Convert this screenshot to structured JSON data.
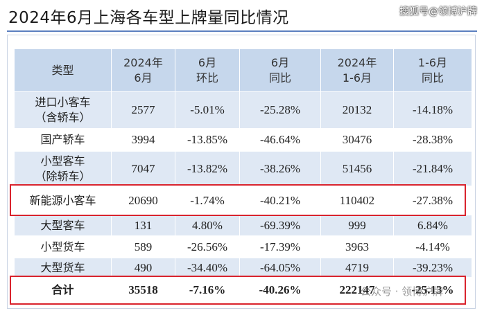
{
  "header": {
    "title": "2024年6月上海各车型上牌量同比情况",
    "watermark": "搜狐号@领博沪牌"
  },
  "table": {
    "columns": [
      [
        "类型"
      ],
      [
        "2024年",
        "6月"
      ],
      [
        "6月",
        "环比"
      ],
      [
        "6月",
        "同比"
      ],
      [
        "2024年",
        "1-6月"
      ],
      [
        "1-6月",
        "同比"
      ]
    ],
    "rows": [
      [
        [
          "进口小客车",
          "（含轿车）"
        ],
        "2577",
        "-5.01%",
        "-25.28%",
        "20132",
        "-14.18%"
      ],
      [
        [
          "国产轿车"
        ],
        "3994",
        "-13.85%",
        "-46.64%",
        "30476",
        "-28.38%"
      ],
      [
        [
          "小型客车",
          "（除轿车）"
        ],
        "7047",
        "-13.82%",
        "-38.26%",
        "51456",
        "-21.84%"
      ],
      [
        [
          "新能源小客车"
        ],
        "20690",
        "-1.74%",
        "-40.21%",
        "110402",
        "-27.38%"
      ],
      [
        [
          "大型客车"
        ],
        "131",
        "4.80%",
        "-69.39%",
        "999",
        "6.84%"
      ],
      [
        [
          "小型货车"
        ],
        "589",
        "-26.56%",
        "-17.39%",
        "3963",
        "-4.14%"
      ],
      [
        [
          "大型货车"
        ],
        "490",
        "-34.40%",
        "-64.05%",
        "4719",
        "-39.23%"
      ],
      [
        [
          "合计"
        ],
        "35518",
        "-7.16%",
        "-40.26%",
        "222147",
        "-25.13%"
      ]
    ]
  },
  "footer": {
    "watermark": "公众号 · 领博沪牌"
  }
}
